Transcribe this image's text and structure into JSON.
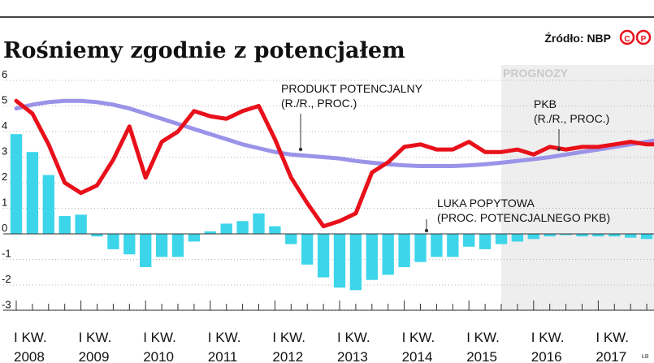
{
  "header": {
    "title": "Rośniemy zgodnie z potencjałem",
    "source": "Źródło: NBP",
    "badge": "CP",
    "credit": "ŁB"
  },
  "chart_data": {
    "type": "line",
    "title": "Rośniemy zgodnie z potencjałem",
    "ylim": [
      -3.5,
      6
    ],
    "yticks": [
      6,
      5,
      4,
      3,
      2,
      1,
      0,
      -1,
      -2,
      -3
    ],
    "xlim": [
      2008,
      2018.25
    ],
    "x_tick_labels": [
      {
        "x": 2008,
        "top": "I KW.",
        "bottom": "2008"
      },
      {
        "x": 2009,
        "top": "I KW.",
        "bottom": "2009"
      },
      {
        "x": 2010,
        "top": "I KW.",
        "bottom": "2010"
      },
      {
        "x": 2011,
        "top": "I KW.",
        "bottom": "2011"
      },
      {
        "x": 2012,
        "top": "I KW.",
        "bottom": "2012"
      },
      {
        "x": 2013,
        "top": "I KW.",
        "bottom": "2013"
      },
      {
        "x": 2014,
        "top": "I KW.",
        "bottom": "2014"
      },
      {
        "x": 2015,
        "top": "I KW.",
        "bottom": "2015"
      },
      {
        "x": 2016,
        "top": "I KW.",
        "bottom": "2016"
      },
      {
        "x": 2017,
        "top": "I KW.",
        "bottom": "2017"
      }
    ],
    "forecast": {
      "label": "PROGNOZY",
      "from": 2015.5,
      "to": 2018.25
    },
    "series": [
      {
        "name": "PKB (R./R., PROC.)",
        "kind": "line",
        "color": "#e8101a",
        "x": [
          2008.0,
          2008.25,
          2008.5,
          2008.75,
          2009.0,
          2009.25,
          2009.5,
          2009.75,
          2010.0,
          2010.25,
          2010.5,
          2010.75,
          2011.0,
          2011.25,
          2011.5,
          2011.75,
          2012.0,
          2012.25,
          2012.5,
          2012.75,
          2013.0,
          2013.25,
          2013.5,
          2013.75,
          2014.0,
          2014.25,
          2014.5,
          2014.75,
          2015.0,
          2015.25,
          2015.5,
          2015.75,
          2016.0,
          2016.25,
          2016.5,
          2016.75,
          2017.0,
          2017.25,
          2017.5,
          2017.75,
          2018.0
        ],
        "values": [
          5.2,
          4.7,
          3.5,
          2.0,
          1.6,
          1.9,
          2.9,
          4.2,
          2.2,
          3.6,
          4.0,
          4.8,
          4.6,
          4.5,
          4.8,
          5.0,
          3.7,
          2.2,
          1.2,
          0.3,
          0.5,
          0.8,
          2.4,
          2.8,
          3.4,
          3.5,
          3.3,
          3.3,
          3.6,
          3.2,
          3.2,
          3.3,
          3.1,
          3.4,
          3.3,
          3.4,
          3.4,
          3.5,
          3.6,
          3.5,
          3.5
        ]
      },
      {
        "name": "PRODUKT POTENCJALNY (R./R., PROC.)",
        "kind": "line",
        "color": "#9b93e8",
        "x": [
          2008.0,
          2008.25,
          2008.5,
          2008.75,
          2009.0,
          2009.25,
          2009.5,
          2009.75,
          2010.0,
          2010.25,
          2010.5,
          2010.75,
          2011.0,
          2011.25,
          2011.5,
          2011.75,
          2012.0,
          2012.25,
          2012.5,
          2012.75,
          2013.0,
          2013.25,
          2013.5,
          2013.75,
          2014.0,
          2014.25,
          2014.5,
          2014.75,
          2015.0,
          2015.25,
          2015.5,
          2015.75,
          2016.0,
          2016.25,
          2016.5,
          2016.75,
          2017.0,
          2017.25,
          2017.5,
          2017.75,
          2018.0
        ],
        "values": [
          4.9,
          5.05,
          5.15,
          5.2,
          5.2,
          5.15,
          5.05,
          4.9,
          4.7,
          4.5,
          4.3,
          4.1,
          3.9,
          3.7,
          3.5,
          3.35,
          3.2,
          3.1,
          3.05,
          3.0,
          2.95,
          2.85,
          2.78,
          2.72,
          2.68,
          2.65,
          2.65,
          2.65,
          2.68,
          2.72,
          2.78,
          2.85,
          2.92,
          3.0,
          3.1,
          3.2,
          3.3,
          3.4,
          3.5,
          3.6,
          3.7
        ]
      },
      {
        "name": "LUKA POPYTOWA (PROC. POTENCJALNEGO PKB)",
        "kind": "bar",
        "color": "#3cd5ea",
        "x": [
          2008.0,
          2008.25,
          2008.5,
          2008.75,
          2009.0,
          2009.25,
          2009.5,
          2009.75,
          2010.0,
          2010.25,
          2010.5,
          2010.75,
          2011.0,
          2011.25,
          2011.5,
          2011.75,
          2012.0,
          2012.25,
          2012.5,
          2012.75,
          2013.0,
          2013.25,
          2013.5,
          2013.75,
          2014.0,
          2014.25,
          2014.5,
          2014.75,
          2015.0,
          2015.25,
          2015.5,
          2015.75,
          2016.0,
          2016.25,
          2016.5,
          2016.75,
          2017.0,
          2017.25,
          2017.5,
          2017.75,
          2018.0
        ],
        "values": [
          3.9,
          3.2,
          2.3,
          0.7,
          0.75,
          -0.1,
          -0.6,
          -0.8,
          -1.3,
          -0.9,
          -0.9,
          -0.3,
          0.1,
          0.4,
          0.5,
          0.8,
          0.3,
          -0.4,
          -1.2,
          -1.7,
          -2.1,
          -2.2,
          -1.8,
          -1.6,
          -1.3,
          -1.1,
          -0.9,
          -0.9,
          -0.5,
          -0.6,
          -0.4,
          -0.3,
          -0.2,
          -0.1,
          -0.05,
          -0.1,
          -0.1,
          -0.1,
          -0.15,
          -0.2,
          -0.3
        ]
      }
    ],
    "annotations": [
      {
        "lines": [
          "PRODUKT POTENCJALNY",
          "(R./R., PROC.)"
        ]
      },
      {
        "lines": [
          "PKB",
          "(R./R., PROC.)"
        ]
      },
      {
        "lines": [
          "LUKA POPYTOWA",
          "(PROC. POTENCJALNEGO PKB)"
        ]
      }
    ]
  }
}
